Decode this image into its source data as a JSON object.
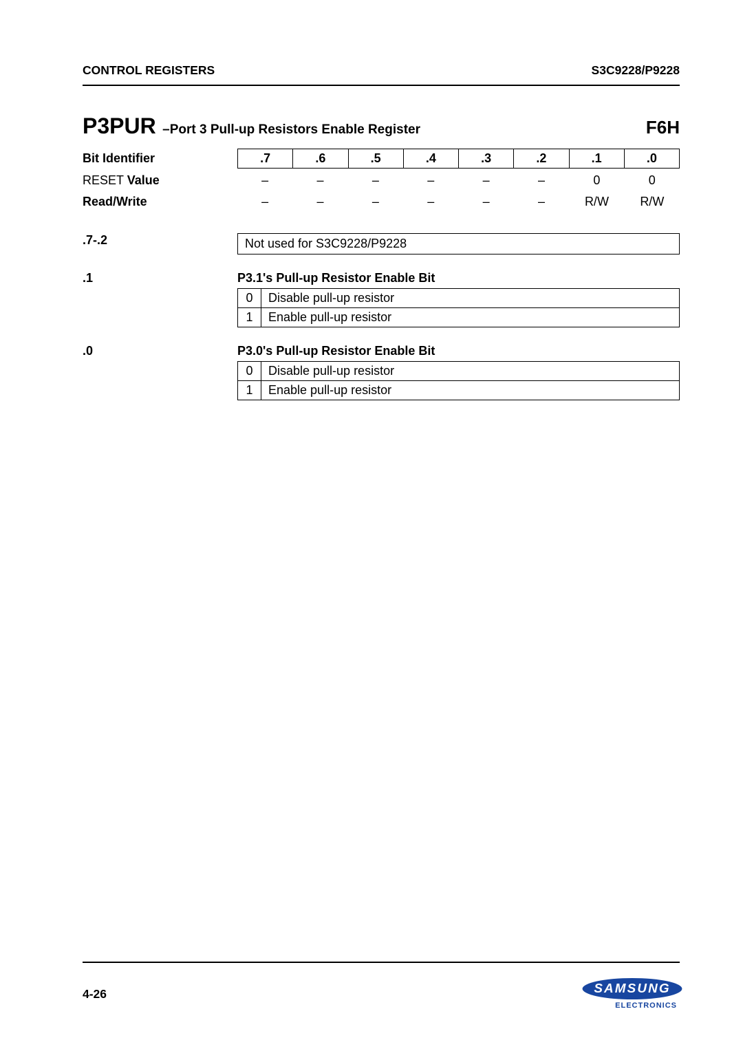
{
  "header": {
    "left": "CONTROL REGISTERS",
    "right": "S3C9228/P9228"
  },
  "register": {
    "name": "P3PUR",
    "dash": "–",
    "desc": "Port 3 Pull-up Resistors Enable Register",
    "addr": "F6H"
  },
  "bitTable": {
    "labels": {
      "bitId": "Bit Identifier",
      "reset": "RESET Value",
      "rw": "Read/Write"
    },
    "bits": [
      ".7",
      ".6",
      ".5",
      ".4",
      ".3",
      ".2",
      ".1",
      ".0"
    ],
    "reset": [
      "–",
      "–",
      "–",
      "–",
      "–",
      "–",
      "0",
      "0"
    ],
    "rw": [
      "–",
      "–",
      "–",
      "–",
      "–",
      "–",
      "R/W",
      "R/W"
    ]
  },
  "sections": [
    {
      "key": ".7-.2",
      "boxedSingle": "Not used for S3C9228/P9228"
    },
    {
      "key": ".1",
      "heading": "P3.1's Pull-up Resistor Enable Bit",
      "rows": [
        {
          "k": "0",
          "v": "Disable pull-up resistor"
        },
        {
          "k": "1",
          "v": "Enable pull-up resistor"
        }
      ]
    },
    {
      "key": ".0",
      "heading": "P3.0's Pull-up Resistor Enable Bit",
      "rows": [
        {
          "k": "0",
          "v": "Disable pull-up resistor"
        },
        {
          "k": "1",
          "v": "Enable pull-up resistor"
        }
      ]
    }
  ],
  "footer": {
    "page": "4-26",
    "logoText": "SAMSUNG",
    "logoSub": "ELECTRONICS"
  },
  "colors": {
    "rule": "#000000",
    "brand": "#1846a0",
    "bg": "#ffffff"
  }
}
